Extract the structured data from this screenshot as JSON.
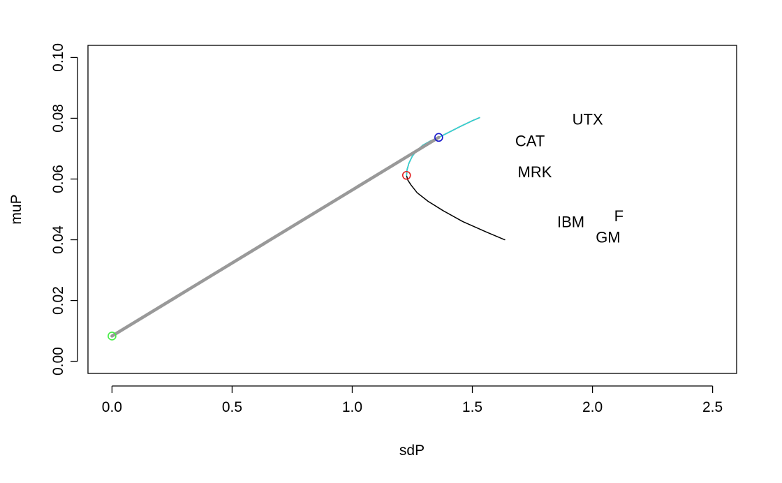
{
  "chart_data": {
    "type": "line",
    "title": "",
    "xlabel": "sdP",
    "ylabel": "muP",
    "xlim": [
      -0.1,
      2.6
    ],
    "ylim": [
      -0.004,
      0.104
    ],
    "x_ticks": [
      0.0,
      0.5,
      1.0,
      1.5,
      2.0,
      2.5
    ],
    "x_tick_labels": [
      "0.0",
      "0.5",
      "1.0",
      "1.5",
      "2.0",
      "2.5"
    ],
    "y_ticks": [
      0.0,
      0.02,
      0.04,
      0.06,
      0.08,
      0.1
    ],
    "y_tick_labels": [
      "0.00",
      "0.02",
      "0.04",
      "0.06",
      "0.08",
      "0.10"
    ],
    "grid": false,
    "legend": "none",
    "series": [
      {
        "color": "#000000",
        "width": 1.5,
        "x": [
          1.635,
          1.56,
          1.46,
          1.38,
          1.315,
          1.27,
          1.245,
          1.231,
          1.226,
          1.228,
          1.236,
          1.25,
          1.27,
          1.295,
          1.325,
          1.36,
          1.4,
          1.45,
          1.5,
          1.53
        ],
        "y": [
          0.04,
          0.0425,
          0.046,
          0.0495,
          0.0527,
          0.0555,
          0.058,
          0.0597,
          0.0612,
          0.063,
          0.0652,
          0.0675,
          0.0695,
          0.0712,
          0.0725,
          0.0737,
          0.0753,
          0.0773,
          0.0792,
          0.0802
        ]
      },
      {
        "color": "#2ed8d8",
        "width": 1.5,
        "x": [
          1.226,
          1.228,
          1.236,
          1.25,
          1.27,
          1.295,
          1.325,
          1.36,
          1.4,
          1.45,
          1.5,
          1.53
        ],
        "y": [
          0.0612,
          0.063,
          0.0652,
          0.0675,
          0.0695,
          0.0712,
          0.0725,
          0.0737,
          0.0753,
          0.0773,
          0.0792,
          0.0802
        ]
      },
      {
        "color": "#999999",
        "width": 4.5,
        "x": [
          0.0,
          1.36
        ],
        "y": [
          0.0083,
          0.0737
        ]
      }
    ],
    "markers": [
      {
        "x": 0.0,
        "y": 0.0083,
        "color": "#44ee44"
      },
      {
        "x": 1.226,
        "y": 0.0612,
        "color": "#e02020"
      },
      {
        "x": 1.36,
        "y": 0.0737,
        "color": "#1a1acc"
      }
    ],
    "annotations": [
      {
        "text": "UTX",
        "x": 1.98,
        "y": 0.0796
      },
      {
        "text": "CAT",
        "x": 1.74,
        "y": 0.0725
      },
      {
        "text": "MRK",
        "x": 1.76,
        "y": 0.0623
      },
      {
        "text": "IBM",
        "x": 1.91,
        "y": 0.0459
      },
      {
        "text": "F",
        "x": 2.11,
        "y": 0.0478
      },
      {
        "text": "GM",
        "x": 2.065,
        "y": 0.0408
      }
    ]
  }
}
